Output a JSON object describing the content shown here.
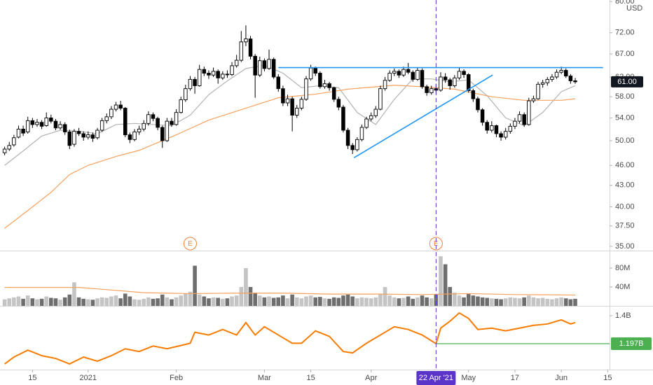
{
  "chart_data": {
    "type": "candlestick",
    "currency": "USD",
    "xlim": [
      -1,
      130.4
    ],
    "xticks": [
      {
        "value": 6,
        "label": "15"
      },
      {
        "value": 18,
        "label": "2021"
      },
      {
        "value": 37,
        "label": "Feb"
      },
      {
        "value": 56,
        "label": "Mar"
      },
      {
        "value": 66,
        "label": "15"
      },
      {
        "value": 79,
        "label": "Apr"
      },
      {
        "value": 100,
        "label": "May"
      },
      {
        "value": 110,
        "label": "17"
      },
      {
        "value": 120,
        "label": "Jun"
      },
      {
        "value": 130,
        "label": "15"
      }
    ],
    "crosshair": {
      "x": 93,
      "label": "22 Apr '21",
      "color": "#5b35c9"
    },
    "price": {
      "ylim": [
        34.5,
        80.4
      ],
      "log_scale": true,
      "yticks": [
        {
          "value": 80,
          "label": "80.00"
        },
        {
          "value": 72,
          "label": "72.00"
        },
        {
          "value": 67,
          "label": "67.00"
        },
        {
          "value": 62,
          "label": "62.00"
        },
        {
          "value": 58,
          "label": "58.00"
        },
        {
          "value": 54,
          "label": "54.00"
        },
        {
          "value": 50,
          "label": "50.00"
        },
        {
          "value": 46,
          "label": "46.00"
        },
        {
          "value": 43,
          "label": "43.00"
        },
        {
          "value": 40,
          "label": "40.00"
        },
        {
          "value": 37.5,
          "label": "37.50"
        },
        {
          "value": 35,
          "label": "35.00"
        }
      ],
      "last_price": {
        "value": 61,
        "label": "61.00",
        "color": "#131722"
      },
      "up_color": "#ffffff",
      "down_color": "#000000",
      "candles": [
        [
          48.0,
          49.0,
          47.6,
          48.6
        ],
        [
          48.6,
          49.8,
          48.3,
          49.2
        ],
        [
          49.3,
          51.0,
          49.0,
          50.5
        ],
        [
          50.6,
          52.6,
          50.4,
          52.0
        ],
        [
          52.0,
          52.6,
          50.8,
          51.3
        ],
        [
          51.5,
          54.2,
          51.2,
          53.5
        ],
        [
          53.5,
          54.0,
          52.2,
          52.8
        ],
        [
          52.8,
          53.8,
          52.4,
          53.2
        ],
        [
          53.2,
          53.6,
          52.0,
          52.5
        ],
        [
          52.6,
          55.0,
          52.4,
          54.0
        ],
        [
          54.0,
          54.6,
          53.0,
          53.4
        ],
        [
          53.4,
          53.8,
          51.8,
          52.2
        ],
        [
          52.2,
          53.4,
          51.9,
          52.8
        ],
        [
          52.8,
          53.2,
          51.0,
          51.5
        ],
        [
          51.5,
          51.9,
          48.6,
          49.2
        ],
        [
          49.4,
          52.0,
          49.0,
          51.6
        ],
        [
          51.6,
          52.2,
          50.8,
          51.2
        ],
        [
          51.2,
          51.6,
          50.0,
          50.6
        ],
        [
          50.6,
          51.6,
          50.2,
          51.0
        ],
        [
          51.0,
          51.4,
          49.8,
          50.4
        ],
        [
          50.5,
          52.2,
          50.2,
          51.8
        ],
        [
          51.8,
          54.0,
          51.5,
          53.5
        ],
        [
          53.5,
          54.8,
          53.0,
          54.2
        ],
        [
          54.2,
          56.2,
          53.8,
          55.6
        ],
        [
          55.6,
          57.0,
          55.2,
          56.4
        ],
        [
          56.4,
          57.2,
          55.4,
          55.8
        ],
        [
          55.8,
          56.0,
          50.6,
          51.0
        ],
        [
          51.0,
          51.4,
          49.6,
          50.2
        ],
        [
          50.2,
          52.0,
          49.9,
          51.5
        ],
        [
          51.5,
          52.6,
          51.0,
          52.0
        ],
        [
          52.0,
          53.6,
          51.6,
          53.0
        ],
        [
          53.0,
          55.2,
          52.6,
          54.6
        ],
        [
          54.6,
          55.0,
          53.4,
          53.9
        ],
        [
          53.9,
          54.2,
          51.8,
          52.3
        ],
        [
          52.3,
          52.6,
          48.8,
          50.0
        ],
        [
          50.0,
          54.0,
          49.8,
          53.4
        ],
        [
          53.4,
          54.0,
          52.4,
          52.8
        ],
        [
          52.8,
          55.6,
          52.6,
          55.0
        ],
        [
          55.0,
          58.0,
          54.8,
          57.4
        ],
        [
          57.4,
          60.4,
          57.0,
          59.6
        ],
        [
          59.6,
          62.2,
          59.2,
          61.5
        ],
        [
          61.5,
          62.0,
          58.6,
          60.2
        ],
        [
          60.2,
          64.6,
          60.0,
          63.6
        ],
        [
          63.6,
          64.2,
          62.2,
          62.8
        ],
        [
          62.8,
          63.4,
          61.6,
          62.4
        ],
        [
          62.4,
          64.0,
          62.0,
          63.2
        ],
        [
          63.2,
          63.6,
          60.6,
          61.8
        ],
        [
          61.8,
          63.2,
          61.4,
          62.6
        ],
        [
          62.6,
          63.4,
          61.8,
          62.5
        ],
        [
          62.5,
          65.2,
          62.2,
          64.4
        ],
        [
          64.4,
          66.8,
          64.0,
          65.6
        ],
        [
          65.6,
          72.4,
          65.2,
          69.8
        ],
        [
          69.8,
          73.8,
          68.8,
          70.5
        ],
        [
          70.5,
          71.2,
          65.8,
          66.5
        ],
        [
          66.5,
          67.0,
          57.8,
          62.4
        ],
        [
          62.4,
          66.4,
          62.0,
          65.5
        ],
        [
          65.5,
          66.0,
          63.2,
          63.8
        ],
        [
          63.8,
          68.0,
          63.5,
          65.8
        ],
        [
          65.8,
          66.2,
          61.6,
          62.0
        ],
        [
          62.0,
          62.6,
          59.0,
          59.6
        ],
        [
          59.6,
          60.2,
          56.2,
          56.8
        ],
        [
          56.8,
          58.4,
          56.2,
          57.6
        ],
        [
          57.6,
          58.0,
          51.6,
          54.5
        ],
        [
          54.5,
          56.4,
          54.0,
          55.8
        ],
        [
          55.8,
          58.0,
          55.4,
          57.5
        ],
        [
          57.5,
          62.2,
          57.2,
          61.6
        ],
        [
          61.6,
          64.6,
          61.2,
          63.9
        ],
        [
          63.9,
          64.2,
          62.2,
          62.8
        ],
        [
          62.8,
          63.2,
          59.6,
          60.0
        ],
        [
          60.0,
          61.4,
          59.6,
          60.6
        ],
        [
          60.6,
          61.0,
          59.2,
          59.8
        ],
        [
          59.8,
          60.0,
          57.0,
          57.5
        ],
        [
          57.5,
          58.0,
          55.4,
          56.0
        ],
        [
          56.0,
          56.4,
          51.4,
          51.8
        ],
        [
          51.8,
          52.2,
          48.6,
          49.2
        ],
        [
          49.2,
          49.6,
          47.8,
          48.5
        ],
        [
          48.5,
          50.6,
          48.2,
          50.2
        ],
        [
          50.2,
          52.8,
          49.9,
          52.3
        ],
        [
          52.3,
          54.2,
          52.0,
          53.8
        ],
        [
          53.8,
          55.0,
          53.4,
          54.4
        ],
        [
          54.4,
          56.2,
          54.0,
          55.6
        ],
        [
          55.6,
          60.2,
          55.4,
          59.6
        ],
        [
          59.6,
          62.0,
          59.2,
          61.3
        ],
        [
          61.3,
          63.4,
          61.0,
          62.8
        ],
        [
          62.8,
          63.8,
          62.2,
          63.2
        ],
        [
          63.2,
          63.6,
          61.8,
          62.4
        ],
        [
          62.4,
          64.2,
          62.0,
          63.6
        ],
        [
          63.6,
          65.0,
          62.6,
          63.0
        ],
        [
          63.0,
          63.4,
          61.0,
          61.5
        ],
        [
          61.5,
          64.0,
          61.2,
          63.4
        ],
        [
          63.4,
          63.8,
          59.6,
          60.0
        ],
        [
          60.0,
          60.4,
          58.2,
          58.8
        ],
        [
          58.8,
          60.2,
          58.4,
          59.6
        ],
        [
          59.6,
          60.6,
          58.6,
          59.3
        ],
        [
          59.3,
          63.0,
          59.0,
          62.0
        ],
        [
          62.0,
          62.8,
          60.8,
          61.4
        ],
        [
          61.4,
          61.8,
          59.4,
          60.2
        ],
        [
          60.2,
          62.4,
          59.8,
          61.8
        ],
        [
          61.8,
          64.0,
          61.4,
          63.2
        ],
        [
          63.2,
          63.6,
          61.8,
          62.5
        ],
        [
          62.5,
          62.8,
          58.8,
          59.2
        ],
        [
          59.2,
          59.6,
          57.0,
          57.6
        ],
        [
          57.6,
          58.0,
          55.0,
          55.5
        ],
        [
          55.5,
          55.8,
          52.6,
          53.2
        ],
        [
          53.2,
          53.6,
          51.2,
          51.8
        ],
        [
          51.8,
          53.4,
          51.4,
          52.6
        ],
        [
          52.6,
          52.8,
          50.6,
          51.2
        ],
        [
          51.2,
          51.6,
          50.0,
          50.6
        ],
        [
          50.6,
          52.2,
          50.2,
          51.6
        ],
        [
          51.6,
          53.0,
          51.2,
          52.5
        ],
        [
          52.5,
          54.0,
          52.0,
          53.4
        ],
        [
          53.4,
          55.2,
          53.0,
          54.6
        ],
        [
          54.6,
          55.0,
          52.4,
          52.8
        ],
        [
          52.8,
          57.8,
          52.6,
          57.2
        ],
        [
          57.2,
          58.2,
          56.8,
          57.6
        ],
        [
          57.6,
          61.0,
          57.4,
          60.5
        ],
        [
          60.5,
          61.4,
          59.8,
          60.8
        ],
        [
          60.8,
          62.0,
          60.2,
          61.5
        ],
        [
          61.5,
          62.6,
          61.0,
          62.0
        ],
        [
          62.0,
          63.6,
          61.6,
          63.0
        ],
        [
          63.0,
          64.2,
          62.6,
          63.4
        ],
        [
          63.4,
          63.8,
          61.8,
          62.2
        ],
        [
          62.2,
          62.6,
          60.6,
          61.2
        ],
        [
          61.2,
          61.8,
          60.6,
          61.0
        ]
      ],
      "moving_averages": [
        {
          "color": "#b3b3b3",
          "x": [
            0,
            4,
            8,
            12,
            16,
            20,
            24,
            28,
            32,
            36,
            40,
            44,
            48,
            52,
            56,
            60,
            64,
            68,
            72,
            76,
            80,
            84,
            88,
            92,
            96,
            100,
            104,
            108,
            112,
            116,
            120,
            123
          ],
          "values": [
            46.0,
            48.3,
            50.8,
            51.8,
            51.6,
            51.2,
            52.8,
            53.0,
            52.8,
            52.6,
            54.5,
            58.4,
            61.2,
            63.8,
            64.5,
            62.8,
            59.8,
            60.2,
            59.8,
            55.0,
            52.8,
            57.5,
            61.6,
            61.6,
            61.0,
            61.4,
            58.2,
            54.0,
            52.6,
            55.0,
            59.0,
            60.2
          ]
        },
        {
          "color": "#f5a15f",
          "x": [
            0,
            5,
            10,
            14,
            18,
            24,
            29,
            37,
            44,
            52,
            59,
            67,
            74,
            84,
            90,
            97,
            105,
            112,
            120,
            123
          ],
          "values": [
            37.2,
            39.5,
            42.0,
            44.6,
            46.0,
            47.4,
            48.4,
            51.0,
            53.6,
            55.8,
            57.8,
            58.5,
            59.5,
            60.3,
            60.0,
            59.5,
            58.0,
            57.3,
            57.3,
            57.6
          ]
        }
      ],
      "trendlines": [
        {
          "color": "#2196f3",
          "x": [
            59,
            129
          ],
          "values": [
            64,
            64
          ]
        },
        {
          "color": "#2196f3",
          "x": [
            75.3,
            105.2
          ],
          "values": [
            47.2,
            62.4
          ]
        }
      ],
      "events": [
        {
          "x": 40,
          "label": "E"
        },
        {
          "x": 93,
          "label": "E"
        }
      ],
      "event_color": "#f0803c"
    },
    "volume": {
      "ylim": [
        0,
        114
      ],
      "yticks": [
        {
          "value": 80,
          "label": "80M"
        },
        {
          "value": 40,
          "label": "40M"
        }
      ],
      "up_color": "#c4c4c4",
      "down_color": "#6e6e6e",
      "values": [
        14,
        16,
        18,
        20,
        15,
        22,
        16,
        14,
        15,
        20,
        17,
        16,
        13,
        18,
        24,
        50,
        18,
        15,
        14,
        13,
        16,
        18,
        17,
        20,
        22,
        16,
        26,
        20,
        14,
        13,
        15,
        18,
        15,
        16,
        24,
        18,
        14,
        18,
        22,
        26,
        30,
        85,
        24,
        20,
        16,
        18,
        17,
        15,
        16,
        20,
        22,
        40,
        80,
        40,
        28,
        22,
        18,
        20,
        17,
        18,
        22,
        16,
        24,
        18,
        16,
        20,
        22,
        18,
        19,
        16,
        15,
        18,
        17,
        22,
        24,
        20,
        16,
        18,
        17,
        16,
        18,
        26,
        40,
        22,
        18,
        16,
        17,
        20,
        15,
        18,
        22,
        18,
        16,
        24,
        105,
        88,
        40,
        28,
        22,
        18,
        26,
        22,
        20,
        18,
        17,
        16,
        15,
        14,
        16,
        18,
        17,
        16,
        18,
        22,
        18,
        16,
        17,
        15,
        14,
        16,
        18,
        16,
        14,
        15
      ],
      "average": {
        "color": "#f5a15f",
        "x": [
          0,
          16,
          20,
          30,
          40,
          50,
          60,
          70,
          80,
          90,
          100,
          110,
          123
        ],
        "values": [
          39,
          39,
          36,
          28,
          26,
          27,
          27,
          25,
          25,
          24,
          26,
          24,
          23
        ]
      }
    },
    "indicator": {
      "ylim": [
        1.009,
        1.466
      ],
      "yticks": [
        {
          "value": 1.4,
          "label": "1.4B"
        }
      ],
      "color": "#f57c00",
      "x": [
        0,
        2,
        5,
        8,
        11,
        14,
        17,
        20,
        23,
        26,
        29,
        32,
        35,
        40,
        41,
        44,
        47,
        50,
        52,
        54,
        56,
        59,
        62,
        64,
        67,
        70,
        73,
        75,
        78,
        81,
        84,
        87,
        90,
        93,
        94,
        96,
        98,
        100,
        102,
        105,
        108,
        111,
        114,
        117,
        120,
        122,
        123
      ],
      "values": [
        1.05,
        1.1,
        1.15,
        1.11,
        1.09,
        1.05,
        1.1,
        1.07,
        1.11,
        1.16,
        1.14,
        1.18,
        1.16,
        1.2,
        1.28,
        1.26,
        1.3,
        1.26,
        1.35,
        1.26,
        1.32,
        1.26,
        1.2,
        1.2,
        1.29,
        1.25,
        1.14,
        1.13,
        1.2,
        1.26,
        1.32,
        1.3,
        1.26,
        1.197,
        1.31,
        1.36,
        1.42,
        1.38,
        1.3,
        1.31,
        1.29,
        1.31,
        1.33,
        1.34,
        1.37,
        1.34,
        1.35
      ],
      "reference": {
        "value": 1.197,
        "label": "1.197B",
        "color": "#4caf50"
      }
    }
  }
}
